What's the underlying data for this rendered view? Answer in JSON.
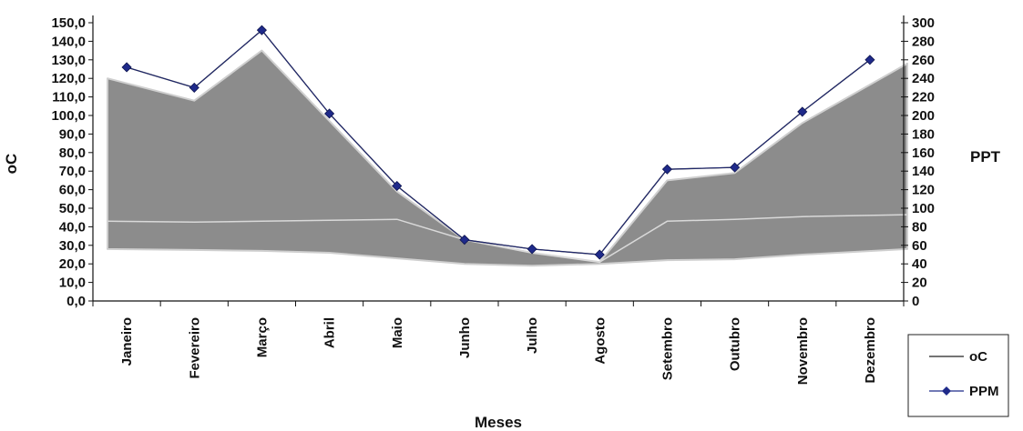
{
  "chart_data": {
    "type": "line",
    "xlabel": "Meses",
    "ylabel": "oC",
    "y2label": "PPT",
    "categories": [
      "Janeiro",
      "Fevereiro",
      "Março",
      "Abril",
      "Maio",
      "Junho",
      "Julho",
      "Agosto",
      "Setembro",
      "Outubro",
      "Novembro",
      "Dezembro"
    ],
    "ylim": [
      0,
      150
    ],
    "y2lim": [
      0,
      300
    ],
    "yticks": [
      "0,0",
      "10,0",
      "20,0",
      "30,0",
      "40,0",
      "50,0",
      "60,0",
      "70,0",
      "80,0",
      "90,0",
      "100,0",
      "110,0",
      "120,0",
      "130,0",
      "140,0",
      "150,0"
    ],
    "y2ticks": [
      "0",
      "20",
      "40",
      "60",
      "80",
      "100",
      "120",
      "140",
      "160",
      "180",
      "200",
      "220",
      "240",
      "260",
      "280",
      "300"
    ],
    "series": [
      {
        "name": "oC",
        "values": [
          126,
          115,
          146,
          101,
          62,
          33,
          28,
          25,
          71,
          72,
          102,
          130
        ],
        "color": "#222222",
        "marker": "none"
      },
      {
        "name": "PPM",
        "values": [
          126,
          115,
          146,
          101,
          62,
          33,
          28,
          25,
          71,
          72,
          102,
          130
        ],
        "color": "#1f2a8a",
        "marker": "diamond"
      }
    ],
    "band": {
      "color": "#8c8c8c",
      "upper": [
        120,
        108,
        135,
        97,
        59,
        33,
        26,
        21,
        65,
        69,
        96,
        128
      ],
      "lower": [
        28,
        27.5,
        27,
        26,
        23,
        20,
        19,
        20,
        22,
        22.5,
        25,
        28
      ],
      "inner_line": [
        43,
        42.5,
        43,
        43.5,
        44,
        33,
        26,
        21,
        43,
        44,
        45.5,
        46.5
      ]
    },
    "legend": {
      "position": "bottom-right",
      "entries": [
        "oC",
        "PPM"
      ]
    },
    "grid": false
  }
}
